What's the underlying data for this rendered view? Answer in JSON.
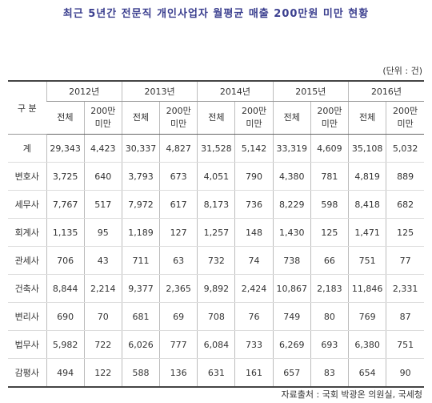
{
  "header": {
    "title": "최근 5년간 전문직 개인사업자 월평균 매출 200만원 미만 현황",
    "unit": "(단위 : 건)"
  },
  "table": {
    "corner": "구 분",
    "years": [
      "2012년",
      "2013년",
      "2014년",
      "2015년",
      "2016년"
    ],
    "subheaders": [
      "전체",
      "200만 미만"
    ],
    "rows": [
      {
        "label": "계",
        "values": [
          "29,343",
          "4,423",
          "30,337",
          "4,827",
          "31,528",
          "5,142",
          "33,319",
          "4,609",
          "35,108",
          "5,032"
        ]
      },
      {
        "label": "변호사",
        "values": [
          "3,725",
          "640",
          "3,793",
          "673",
          "4,051",
          "790",
          "4,380",
          "781",
          "4,819",
          "889"
        ]
      },
      {
        "label": "세무사",
        "values": [
          "7,767",
          "517",
          "7,972",
          "617",
          "8,173",
          "736",
          "8,229",
          "598",
          "8,418",
          "682"
        ]
      },
      {
        "label": "회계사",
        "values": [
          "1,135",
          "95",
          "1,189",
          "127",
          "1,257",
          "148",
          "1,430",
          "125",
          "1,471",
          "125"
        ]
      },
      {
        "label": "관세사",
        "values": [
          "706",
          "43",
          "711",
          "63",
          "732",
          "74",
          "738",
          "66",
          "751",
          "77"
        ]
      },
      {
        "label": "건축사",
        "values": [
          "8,844",
          "2,214",
          "9,377",
          "2,365",
          "9,892",
          "2,424",
          "10,867",
          "2,183",
          "11,846",
          "2,331"
        ]
      },
      {
        "label": "변리사",
        "values": [
          "690",
          "70",
          "681",
          "69",
          "708",
          "76",
          "749",
          "80",
          "769",
          "87"
        ]
      },
      {
        "label": "법무사",
        "values": [
          "5,982",
          "722",
          "6,026",
          "777",
          "6,084",
          "733",
          "6,269",
          "693",
          "6,380",
          "751"
        ]
      },
      {
        "label": "감평사",
        "values": [
          "494",
          "122",
          "588",
          "136",
          "631",
          "161",
          "657",
          "83",
          "654",
          "90"
        ]
      }
    ]
  },
  "footer": {
    "source": "자료출처 : 국회 박광온 의원실, 국세청"
  }
}
